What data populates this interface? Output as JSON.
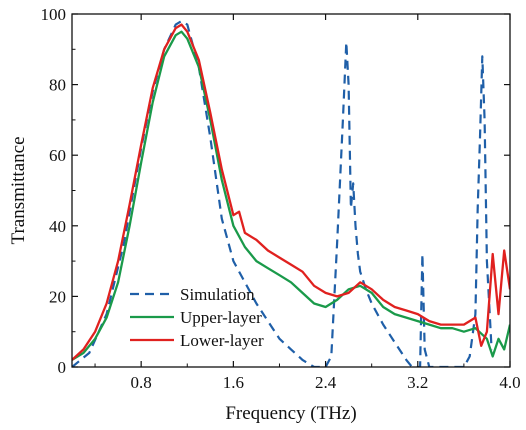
{
  "chart_data": {
    "type": "line",
    "title": "",
    "xlabel": "Frequency (THz)",
    "ylabel": "Transmittance",
    "xlim": [
      0.2,
      4.0
    ],
    "ylim": [
      0,
      100
    ],
    "xticks": [
      0.8,
      1.6,
      2.4,
      3.2,
      4.0
    ],
    "xtick_labels": [
      "0.8",
      "1.6",
      "2.4",
      "3.2",
      "4.0"
    ],
    "yticks": [
      0,
      20,
      40,
      60,
      80,
      100
    ],
    "ytick_labels": [
      "0",
      "20",
      "40",
      "60",
      "80",
      "100"
    ],
    "grid": false,
    "legend_position": "bottom-left",
    "series": [
      {
        "name": "Simulation",
        "color": "#1f5fa8",
        "dash": "dashed",
        "x": [
          0.2,
          0.35,
          0.5,
          0.65,
          0.8,
          0.9,
          1.0,
          1.1,
          1.15,
          1.2,
          1.3,
          1.4,
          1.5,
          1.6,
          1.7,
          1.8,
          1.9,
          2.0,
          2.1,
          2.2,
          2.3,
          2.35,
          2.4,
          2.45,
          2.5,
          2.55,
          2.58,
          2.6,
          2.62,
          2.64,
          2.66,
          2.68,
          2.7,
          2.75,
          2.8,
          2.9,
          3.0,
          3.1,
          3.15,
          3.2,
          3.22,
          3.24,
          3.26,
          3.3,
          3.4,
          3.5,
          3.6,
          3.65,
          3.7,
          3.72,
          3.74,
          3.76,
          3.78,
          3.8,
          3.84
        ],
        "y": [
          0,
          4,
          15,
          35,
          62,
          78,
          90,
          97,
          98,
          97,
          85,
          65,
          42,
          30,
          24,
          18,
          13,
          8,
          5,
          2,
          0,
          0,
          0,
          3,
          35,
          70,
          92,
          80,
          45,
          52,
          40,
          32,
          27,
          22,
          18,
          12,
          7,
          2,
          0,
          0,
          0,
          32,
          5,
          0,
          0,
          0,
          0,
          3,
          15,
          45,
          65,
          88,
          70,
          30,
          5
        ]
      },
      {
        "name": "Upper-layer",
        "color": "#1a9a4a",
        "dash": "solid",
        "x": [
          0.2,
          0.3,
          0.4,
          0.5,
          0.6,
          0.7,
          0.8,
          0.9,
          1.0,
          1.1,
          1.15,
          1.2,
          1.3,
          1.4,
          1.5,
          1.6,
          1.7,
          1.8,
          1.9,
          2.0,
          2.1,
          2.2,
          2.3,
          2.4,
          2.5,
          2.6,
          2.7,
          2.8,
          2.9,
          3.0,
          3.1,
          3.2,
          3.3,
          3.4,
          3.5,
          3.6,
          3.7,
          3.8,
          3.85,
          3.9,
          3.95,
          4.0
        ],
        "y": [
          2,
          4,
          8,
          14,
          24,
          40,
          58,
          75,
          88,
          94,
          95,
          93,
          85,
          70,
          53,
          40,
          34,
          30,
          28,
          26,
          24,
          21,
          18,
          17,
          19,
          22,
          23,
          21,
          17,
          15,
          14,
          13,
          12,
          11,
          11,
          10,
          11,
          8,
          3,
          8,
          5,
          12
        ]
      },
      {
        "name": "Lower-layer",
        "color": "#e0211f",
        "dash": "solid",
        "x": [
          0.2,
          0.3,
          0.4,
          0.5,
          0.6,
          0.7,
          0.8,
          0.9,
          1.0,
          1.1,
          1.15,
          1.2,
          1.3,
          1.4,
          1.5,
          1.6,
          1.65,
          1.7,
          1.8,
          1.9,
          2.0,
          2.1,
          2.2,
          2.3,
          2.4,
          2.5,
          2.6,
          2.7,
          2.8,
          2.9,
          3.0,
          3.1,
          3.2,
          3.3,
          3.4,
          3.5,
          3.6,
          3.7,
          3.75,
          3.8,
          3.85,
          3.9,
          3.95,
          4.0
        ],
        "y": [
          2,
          5,
          10,
          18,
          30,
          46,
          63,
          79,
          90,
          96,
          97,
          95,
          87,
          72,
          56,
          43,
          44,
          38,
          36,
          33,
          31,
          29,
          27,
          23,
          21,
          20,
          21,
          24,
          22,
          19,
          17,
          16,
          15,
          13,
          12,
          12,
          12,
          14,
          6,
          10,
          32,
          15,
          33,
          22
        ]
      }
    ]
  }
}
